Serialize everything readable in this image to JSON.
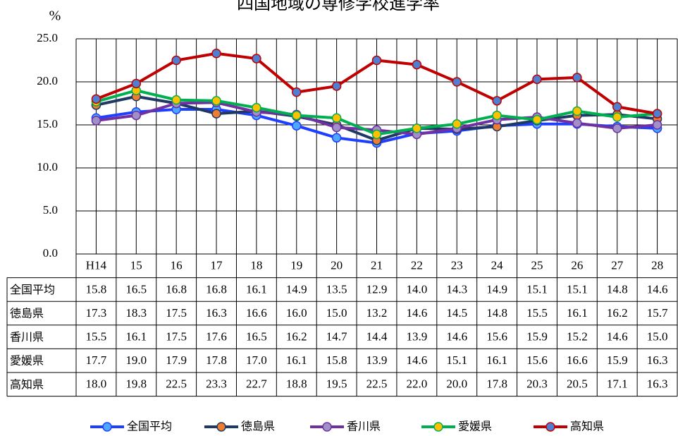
{
  "chart_data": {
    "type": "line",
    "title": "四国地域の専修学校進学率",
    "y_axis_label": "%",
    "categories": [
      "H14",
      "15",
      "16",
      "17",
      "18",
      "19",
      "20",
      "21",
      "22",
      "23",
      "24",
      "25",
      "26",
      "27",
      "28"
    ],
    "ylim": [
      0,
      25
    ],
    "yticks": [
      {
        "value": 0,
        "label": "0.0"
      },
      {
        "value": 5,
        "label": "5.0"
      },
      {
        "value": 10,
        "label": "10.0"
      },
      {
        "value": 15,
        "label": "15.0"
      },
      {
        "value": 20,
        "label": "20.0"
      },
      {
        "value": 25,
        "label": "25.0"
      }
    ],
    "grid": true,
    "legend": "bottom",
    "series": [
      {
        "name": "全国平均",
        "color": "#1f3fff",
        "marker_color": "#4da6ff",
        "values": [
          15.8,
          16.5,
          16.8,
          16.8,
          16.1,
          14.9,
          13.5,
          12.9,
          14.0,
          14.3,
          14.9,
          15.1,
          15.1,
          14.8,
          14.6
        ],
        "value_labels": [
          "15.8",
          "16.5",
          "16.8",
          "16.8",
          "16.1",
          "14.9",
          "13.5",
          "12.9",
          "14.0",
          "14.3",
          "14.9",
          "15.1",
          "15.1",
          "14.8",
          "14.6"
        ]
      },
      {
        "name": "徳島県",
        "color": "#1f3864",
        "marker_color": "#ed7d31",
        "values": [
          17.3,
          18.3,
          17.5,
          16.3,
          16.6,
          16.0,
          15.0,
          13.2,
          14.6,
          14.5,
          14.8,
          15.5,
          16.1,
          16.2,
          15.7
        ],
        "value_labels": [
          "17.3",
          "18.3",
          "17.5",
          "16.3",
          "16.6",
          "16.0",
          "15.0",
          "13.2",
          "14.6",
          "14.5",
          "14.8",
          "15.5",
          "16.1",
          "16.2",
          "15.7"
        ]
      },
      {
        "name": "香川県",
        "color": "#7030a0",
        "marker_color": "#a090c8",
        "values": [
          15.5,
          16.1,
          17.5,
          17.6,
          16.5,
          16.2,
          14.7,
          14.4,
          13.9,
          14.6,
          15.6,
          15.9,
          15.2,
          14.6,
          15.0
        ],
        "value_labels": [
          "15.5",
          "16.1",
          "17.5",
          "17.6",
          "16.5",
          "16.2",
          "14.7",
          "14.4",
          "13.9",
          "14.6",
          "15.6",
          "15.9",
          "15.2",
          "14.6",
          "15.0"
        ]
      },
      {
        "name": "愛媛県",
        "color": "#00b050",
        "marker_color": "#ffc000",
        "values": [
          17.7,
          19.0,
          17.9,
          17.8,
          17.0,
          16.1,
          15.8,
          13.9,
          14.6,
          15.1,
          16.1,
          15.6,
          16.6,
          15.9,
          16.3
        ],
        "value_labels": [
          "17.7",
          "19.0",
          "17.9",
          "17.8",
          "17.0",
          "16.1",
          "15.8",
          "13.9",
          "14.6",
          "15.1",
          "16.1",
          "15.6",
          "16.6",
          "15.9",
          "16.3"
        ]
      },
      {
        "name": "高知県",
        "color": "#c00000",
        "marker_color": "#4f7fd0",
        "values": [
          18.0,
          19.8,
          22.5,
          23.3,
          22.7,
          18.8,
          19.5,
          22.5,
          22.0,
          20.0,
          17.8,
          20.3,
          20.5,
          17.1,
          16.3
        ],
        "value_labels": [
          "18.0",
          "19.8",
          "22.5",
          "23.3",
          "22.7",
          "18.8",
          "19.5",
          "22.5",
          "22.0",
          "20.0",
          "17.8",
          "20.3",
          "20.5",
          "17.1",
          "16.3"
        ]
      }
    ]
  }
}
